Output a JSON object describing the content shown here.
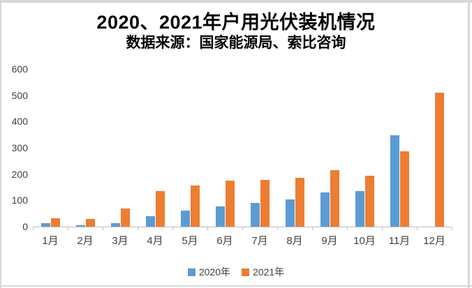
{
  "chart_data": {
    "type": "bar",
    "title": "2020、2021年户用光伏装机情况",
    "subtitle": "数据来源：国家能源局、索比咨询",
    "categories": [
      "1月",
      "2月",
      "3月",
      "4月",
      "5月",
      "6月",
      "7月",
      "8月",
      "9月",
      "10月",
      "11月",
      "12月"
    ],
    "series": [
      {
        "name": "2020年",
        "color": "#5B9BD5",
        "values": [
          13,
          5,
          13,
          40,
          62,
          78,
          91,
          103,
          130,
          136,
          349,
          0
        ]
      },
      {
        "name": "2021年",
        "color": "#ED7D31",
        "values": [
          33,
          29,
          70,
          135,
          158,
          175,
          178,
          185,
          214,
          193,
          286,
          510
        ]
      }
    ],
    "ylim": [
      0,
      600
    ],
    "yticks": [
      0,
      100,
      200,
      300,
      400,
      500,
      600
    ],
    "grid": false,
    "legend_position": "bottom",
    "colors": {
      "axis_line": "#bfbfbf",
      "axis_text": "#404040",
      "frame_border": "#d8d8d8"
    }
  }
}
